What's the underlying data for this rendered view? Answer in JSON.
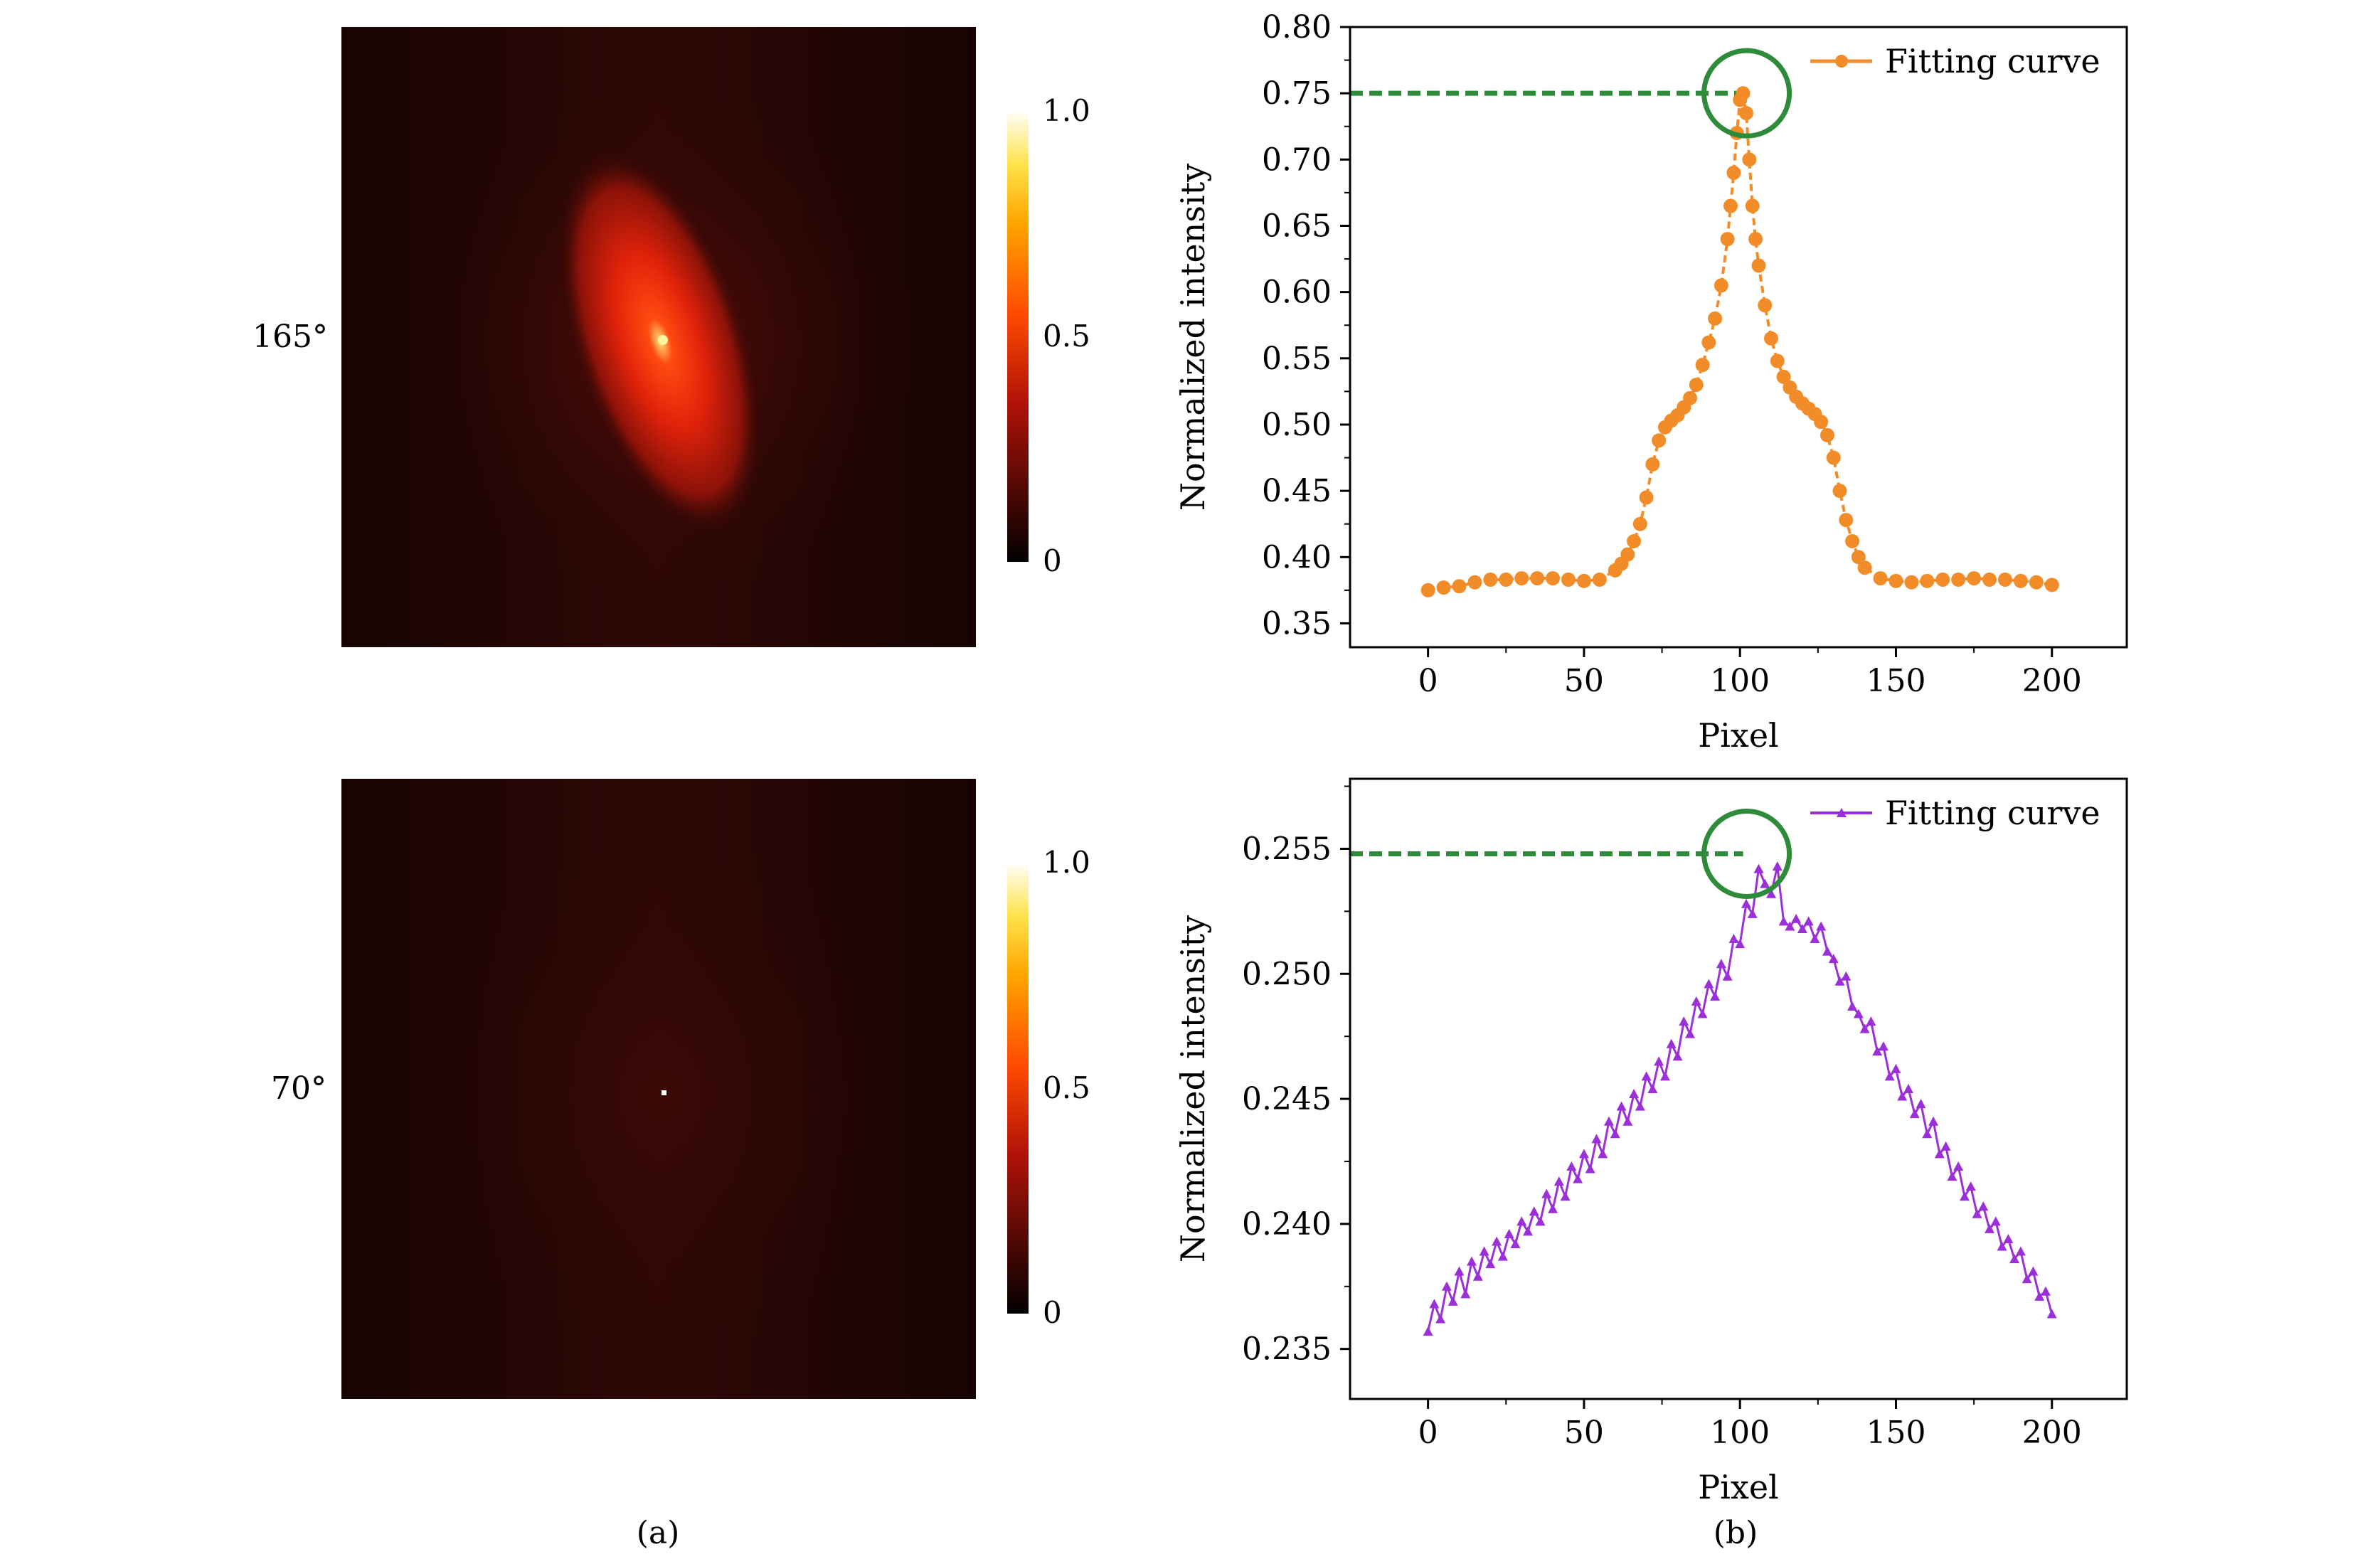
{
  "panel_labels": {
    "a": "(a)",
    "b": "(b)"
  },
  "heatmaps": [
    {
      "angle_label": "165°",
      "colorbar_ticks": [
        "1.0",
        "0.5",
        "0"
      ]
    },
    {
      "angle_label": "70°",
      "colorbar_ticks": [
        "1.0",
        "0.5",
        "0"
      ]
    }
  ],
  "colors": {
    "orange_series": "#f28c28",
    "purple_series": "#9b30d9",
    "peak_marker": "#2e8b3a",
    "heatmap_background": "#2a0705"
  },
  "chart_data": [
    {
      "type": "scatter",
      "title": "",
      "xlabel": "Pixel",
      "ylabel": "Normalized intensity",
      "xlim": [
        -25,
        224
      ],
      "ylim": [
        0.332,
        0.8
      ],
      "xticks": [
        0,
        50,
        100,
        150,
        200
      ],
      "xtick_labels": [
        "0",
        "50",
        "100",
        "150",
        "200"
      ],
      "yticks": [
        0.35,
        0.4,
        0.45,
        0.5,
        0.55,
        0.6,
        0.65,
        0.7,
        0.75,
        0.8
      ],
      "ytick_labels": [
        "0.35",
        "0.40",
        "0.45",
        "0.50",
        "0.55",
        "0.60",
        "0.65",
        "0.70",
        "0.75",
        "0.80"
      ],
      "legend": "Fitting curve",
      "legend_position": "top-right",
      "series": [
        {
          "name": "Fitting curve",
          "x": [
            0,
            5,
            10,
            15,
            20,
            25,
            30,
            35,
            40,
            45,
            50,
            55,
            60,
            62,
            64,
            66,
            68,
            70,
            72,
            74,
            76,
            78,
            80,
            82,
            84,
            86,
            88,
            90,
            92,
            94,
            96,
            97,
            98,
            99,
            100,
            101,
            102,
            103,
            104,
            105,
            106,
            108,
            110,
            112,
            114,
            116,
            118,
            120,
            122,
            124,
            126,
            128,
            130,
            132,
            134,
            136,
            138,
            140,
            145,
            150,
            155,
            160,
            165,
            170,
            175,
            180,
            185,
            190,
            195,
            200
          ],
          "y": [
            0.375,
            0.377,
            0.378,
            0.381,
            0.383,
            0.383,
            0.384,
            0.384,
            0.384,
            0.383,
            0.382,
            0.383,
            0.39,
            0.395,
            0.402,
            0.412,
            0.425,
            0.445,
            0.47,
            0.488,
            0.498,
            0.503,
            0.507,
            0.513,
            0.52,
            0.53,
            0.545,
            0.562,
            0.58,
            0.605,
            0.64,
            0.665,
            0.69,
            0.72,
            0.745,
            0.75,
            0.735,
            0.7,
            0.665,
            0.64,
            0.62,
            0.59,
            0.565,
            0.548,
            0.536,
            0.528,
            0.521,
            0.516,
            0.512,
            0.508,
            0.502,
            0.492,
            0.475,
            0.45,
            0.428,
            0.412,
            0.4,
            0.392,
            0.384,
            0.382,
            0.381,
            0.382,
            0.383,
            0.383,
            0.384,
            0.383,
            0.383,
            0.382,
            0.381,
            0.379
          ]
        }
      ],
      "annotation": {
        "type": "peak-marker",
        "x": 101,
        "y": 0.75,
        "dashed_line_from_x": -25
      }
    },
    {
      "type": "line",
      "title": "",
      "xlabel": "Pixel",
      "ylabel": "Normalized intensity",
      "xlim": [
        -25,
        224
      ],
      "ylim": [
        0.233,
        0.2578
      ],
      "xticks": [
        0,
        50,
        100,
        150,
        200
      ],
      "xtick_labels": [
        "0",
        "50",
        "100",
        "150",
        "200"
      ],
      "yticks": [
        0.235,
        0.24,
        0.245,
        0.25,
        0.255
      ],
      "ytick_labels": [
        "0.235",
        "0.240",
        "0.245",
        "0.250",
        "0.255"
      ],
      "legend": "Fitting curve",
      "legend_position": "top-right",
      "series": [
        {
          "name": "Fitting curve",
          "x": [
            0,
            2,
            4,
            6,
            8,
            10,
            12,
            14,
            16,
            18,
            20,
            22,
            24,
            26,
            28,
            30,
            32,
            34,
            36,
            38,
            40,
            42,
            44,
            46,
            48,
            50,
            52,
            54,
            56,
            58,
            60,
            62,
            64,
            66,
            68,
            70,
            72,
            74,
            76,
            78,
            80,
            82,
            84,
            86,
            88,
            90,
            92,
            94,
            96,
            98,
            100,
            102,
            104,
            106,
            108,
            110,
            112,
            114,
            116,
            118,
            120,
            122,
            124,
            126,
            128,
            130,
            132,
            134,
            136,
            138,
            140,
            142,
            144,
            146,
            148,
            150,
            152,
            154,
            156,
            158,
            160,
            162,
            164,
            166,
            168,
            170,
            172,
            174,
            176,
            178,
            180,
            182,
            184,
            186,
            188,
            190,
            192,
            194,
            196,
            198,
            200
          ],
          "y": [
            0.2357,
            0.2368,
            0.2362,
            0.2375,
            0.2369,
            0.2381,
            0.2372,
            0.2385,
            0.2379,
            0.2389,
            0.2384,
            0.2393,
            0.2387,
            0.2396,
            0.2392,
            0.2401,
            0.2397,
            0.2405,
            0.2401,
            0.2412,
            0.2406,
            0.2417,
            0.2411,
            0.2423,
            0.2418,
            0.2428,
            0.2422,
            0.2434,
            0.2428,
            0.2441,
            0.2436,
            0.2447,
            0.2441,
            0.2452,
            0.2447,
            0.2459,
            0.2454,
            0.2465,
            0.2459,
            0.2472,
            0.2467,
            0.2481,
            0.2476,
            0.2489,
            0.2484,
            0.2496,
            0.2491,
            0.2504,
            0.2499,
            0.2514,
            0.2512,
            0.2528,
            0.2524,
            0.2542,
            0.2536,
            0.2532,
            0.2543,
            0.2521,
            0.2519,
            0.2522,
            0.2518,
            0.2521,
            0.2514,
            0.2519,
            0.2509,
            0.2506,
            0.2497,
            0.2499,
            0.2487,
            0.2484,
            0.2478,
            0.2481,
            0.2469,
            0.2471,
            0.2459,
            0.2462,
            0.2451,
            0.2454,
            0.2444,
            0.2448,
            0.2436,
            0.2441,
            0.2428,
            0.2431,
            0.2419,
            0.2423,
            0.2411,
            0.2415,
            0.2404,
            0.2407,
            0.2398,
            0.2401,
            0.2391,
            0.2394,
            0.2386,
            0.2389,
            0.2378,
            0.2381,
            0.2371,
            0.2373,
            0.2364
          ]
        }
      ],
      "annotation": {
        "type": "peak-marker",
        "x": 101,
        "y": 0.2548,
        "dashed_line_from_x": -25
      }
    }
  ]
}
